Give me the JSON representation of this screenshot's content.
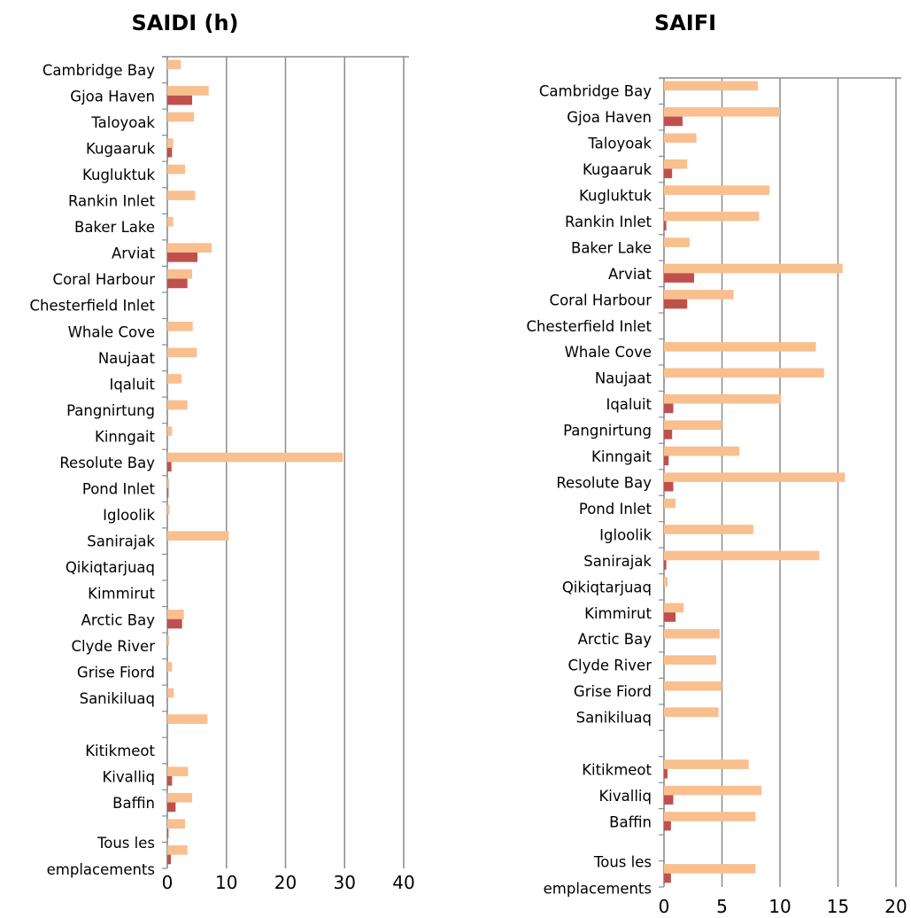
{
  "chart_data": [
    {
      "type": "bar",
      "orientation": "horizontal",
      "title": "SAIDI (h)",
      "xlim": [
        0,
        40
      ],
      "x_ticks": [
        "0",
        "10",
        "20",
        "30",
        "40"
      ],
      "grid": true,
      "series_colors": [
        "#f9bf8f",
        "#c0504d"
      ],
      "categories": [
        "Cambridge Bay",
        "Gjoa Haven",
        "Taloyoak",
        "Kugaaruk",
        "Kugluktuk",
        "Rankin Inlet",
        "Baker Lake",
        "Arviat",
        "Coral Harbour",
        "Chesterfield Inlet",
        "Whale Cove",
        "Naujaat",
        "Iqaluit",
        "Pangnirtung",
        "Kinngait",
        "Resolute Bay",
        "Pond Inlet",
        "Igloolik",
        "Sanirajak",
        "Qikiqtarjuaq",
        "Kimmirut",
        "Arctic Bay",
        "Clyde River",
        "Grise Fiord",
        "Sanikiluaq",
        "",
        "Kitikmeot",
        "Kivalliq",
        "Baffin",
        "",
        "Tous les emplacements"
      ],
      "series": [
        {
          "values": [
            2.3,
            7.0,
            4.5,
            1.0,
            3.0,
            4.7,
            1.0,
            7.5,
            4.2,
            0.0,
            4.3,
            5.0,
            2.4,
            3.4,
            0.8,
            29.7,
            0.3,
            0.4,
            10.4,
            0.0,
            0.0,
            2.8,
            0.3,
            0.8,
            1.1,
            6.8,
            0.0,
            3.5,
            4.2,
            3.0,
            3.4
          ]
        },
        {
          "values": [
            0.0,
            4.2,
            0.0,
            0.8,
            0.0,
            0.0,
            0.0,
            5.1,
            3.4,
            0.0,
            0.0,
            0.0,
            0.0,
            0.0,
            0.0,
            0.7,
            0.2,
            0.0,
            0.0,
            0.0,
            0.0,
            2.5,
            0.0,
            0.0,
            0.0,
            0.0,
            0.0,
            0.8,
            1.4,
            0.2,
            0.6
          ]
        }
      ]
    },
    {
      "type": "bar",
      "orientation": "horizontal",
      "title": "SAIFI",
      "xlim": [
        0,
        20
      ],
      "x_ticks": [
        "0",
        "5",
        "10",
        "15",
        "20"
      ],
      "grid": true,
      "series_colors": [
        "#f9bf8f",
        "#c0504d"
      ],
      "categories": [
        "Cambridge Bay",
        "Gjoa Haven",
        "Taloyoak",
        "Kugaaruk",
        "Kugluktuk",
        "Rankin Inlet",
        "Baker Lake",
        "Arviat",
        "Coral Harbour",
        "Chesterfield Inlet",
        "Whale Cove",
        "Naujaat",
        "Iqaluit",
        "Pangnirtung",
        "Kinngait",
        "Resolute Bay",
        "Pond Inlet",
        "Igloolik",
        "Sanirajak",
        "Qikiqtarjuaq",
        "Kimmirut",
        "Arctic Bay",
        "Clyde River",
        "Grise Fiord",
        "Sanikiluaq",
        "",
        "Kitikmeot",
        "Kivalliq",
        "Baffin",
        "",
        "Tous les emplacements"
      ],
      "series": [
        {
          "values": [
            8.1,
            10.0,
            2.8,
            2.0,
            9.1,
            8.2,
            2.2,
            15.4,
            6.0,
            0.0,
            13.1,
            13.8,
            10.1,
            5.0,
            6.5,
            15.6,
            1.0,
            7.7,
            13.4,
            0.3,
            1.7,
            4.8,
            4.5,
            5.0,
            4.7,
            0.0,
            7.3,
            8.4,
            7.9,
            0.0,
            7.9
          ]
        },
        {
          "values": [
            0.0,
            1.6,
            0.0,
            0.7,
            0.0,
            0.2,
            0.0,
            2.6,
            2.0,
            0.0,
            0.0,
            0.0,
            0.8,
            0.7,
            0.4,
            0.8,
            0.0,
            0.0,
            0.2,
            0.0,
            1.0,
            0.0,
            0.0,
            0.0,
            0.0,
            0.0,
            0.3,
            0.8,
            0.6,
            0.0,
            0.6
          ]
        }
      ]
    }
  ]
}
